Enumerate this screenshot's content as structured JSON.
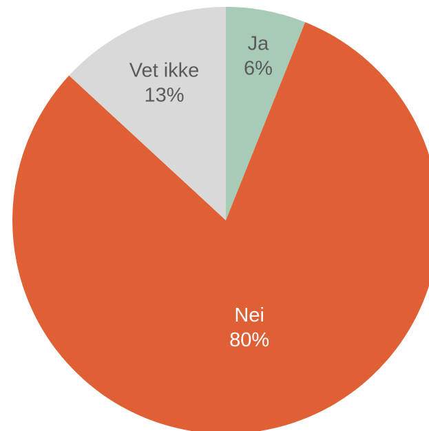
{
  "chart_data": {
    "type": "pie",
    "title": "",
    "start_angle_deg": 0,
    "direction": "clockwise",
    "slices": [
      {
        "label": "Ja",
        "value": 6,
        "display": "6%",
        "color": "#a8cbb8",
        "label_color": "#5a5a5a"
      },
      {
        "label": "Nei",
        "value": 80,
        "display": "80%",
        "color": "#e06035",
        "label_color": "#ffffff"
      },
      {
        "label": "Vet ikke",
        "value": 13,
        "display": "13%",
        "color": "#d9d9d9",
        "label_color": "#5a5a5a"
      }
    ]
  }
}
